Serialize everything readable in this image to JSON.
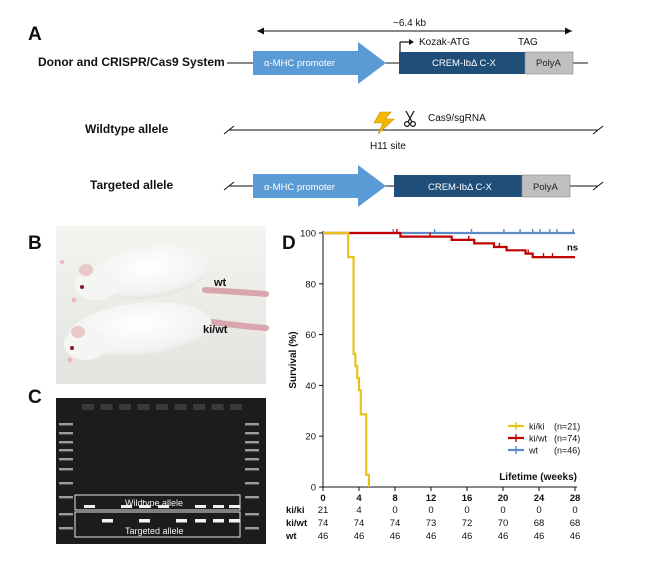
{
  "panelA": {
    "letter": "A",
    "size_label": "~6.4 kb",
    "donor_label": "Donor and CRISPR/Cas9 System",
    "wildtype_label": "Wildtype allele",
    "targeted_label": "Targeted allele",
    "promoter": "α-MHC promoter",
    "crem": "CREM-IbΔ C-X",
    "polya": "PolyA",
    "kozak": "Kozak-ATG",
    "tag": "TAG",
    "cas9": "Cas9/sgRNA",
    "h11": "H11 site",
    "colors": {
      "promoter": "#5b9bd5",
      "crem": "#1f4e79",
      "polya": "#bfbfbf",
      "lightning": "#f5b800"
    },
    "icons": [
      "lightning-icon",
      "scissors-icon"
    ]
  },
  "panelB": {
    "letter": "B",
    "wt": "wt",
    "kiwt": "ki/wt"
  },
  "panelC": {
    "letter": "C",
    "wildtype_band": "Wildtype allele",
    "targeted_band": "Targeted allele"
  },
  "panelD": {
    "letter": "D",
    "chart_data": {
      "type": "line",
      "subtype": "kaplan-meier",
      "xlabel": "Lifetime (weeks)",
      "ylabel": "Survival (%)",
      "xlim": [
        0,
        28
      ],
      "ylim": [
        0,
        100
      ],
      "x_ticks": [
        0,
        4,
        8,
        12,
        16,
        20,
        24,
        28
      ],
      "y_ticks": [
        0,
        20,
        40,
        60,
        80,
        100
      ],
      "annotation": "ns",
      "legend_position": "bottom-right",
      "series": [
        {
          "name": "ki/ki",
          "n_label": "(n=21)",
          "color": "#e8c21a",
          "steps": [
            [
              0,
              100
            ],
            [
              2.8,
              100
            ],
            [
              2.8,
              90.5
            ],
            [
              3.4,
              90.5
            ],
            [
              3.4,
              52.4
            ],
            [
              3.6,
              52.4
            ],
            [
              3.6,
              47.6
            ],
            [
              3.8,
              47.6
            ],
            [
              3.8,
              42.9
            ],
            [
              4.0,
              42.9
            ],
            [
              4.0,
              38.1
            ],
            [
              4.2,
              38.1
            ],
            [
              4.2,
              28.6
            ],
            [
              4.8,
              28.6
            ],
            [
              4.8,
              4.8
            ],
            [
              5.1,
              4.8
            ],
            [
              5.1,
              0
            ]
          ]
        },
        {
          "name": "ki/wt",
          "n_label": "(n=74)",
          "color": "#c00000",
          "steps": [
            [
              0,
              100
            ],
            [
              8.6,
              100
            ],
            [
              8.6,
              98.6
            ],
            [
              12.5,
              98.6
            ],
            [
              12.5,
              98.6
            ],
            [
              14.3,
              98.6
            ],
            [
              14.3,
              97.3
            ],
            [
              16.8,
              97.3
            ],
            [
              16.8,
              95.9
            ],
            [
              19.0,
              95.9
            ],
            [
              19.0,
              94.5
            ],
            [
              20.4,
              94.5
            ],
            [
              20.4,
              93.2
            ],
            [
              22.5,
              93.2
            ],
            [
              22.5,
              91.9
            ],
            [
              23.3,
              91.9
            ],
            [
              23.3,
              90.5
            ],
            [
              28,
              90.5
            ]
          ],
          "censored": [
            8.2,
            11.9,
            16.2,
            19.6,
            22.8,
            24.5,
            25.5
          ]
        },
        {
          "name": "wt",
          "n_label": "(n=46)",
          "color": "#5b8ac4",
          "steps": [
            [
              0,
              100
            ],
            [
              28,
              100
            ]
          ],
          "censored": [
            7.8,
            12.4,
            16.5,
            20.1,
            21.9,
            23.3,
            24.1,
            25.2,
            26.0,
            27.8
          ]
        }
      ],
      "risk_table": {
        "rows": [
          {
            "label": "ki/ki",
            "values": [
              21,
              4,
              0,
              0,
              0,
              0,
              0,
              0
            ]
          },
          {
            "label": "ki/wt",
            "values": [
              74,
              74,
              74,
              73,
              72,
              70,
              68,
              68
            ]
          },
          {
            "label": "wt",
            "values": [
              46,
              46,
              46,
              46,
              46,
              46,
              46,
              46
            ]
          }
        ]
      }
    }
  }
}
